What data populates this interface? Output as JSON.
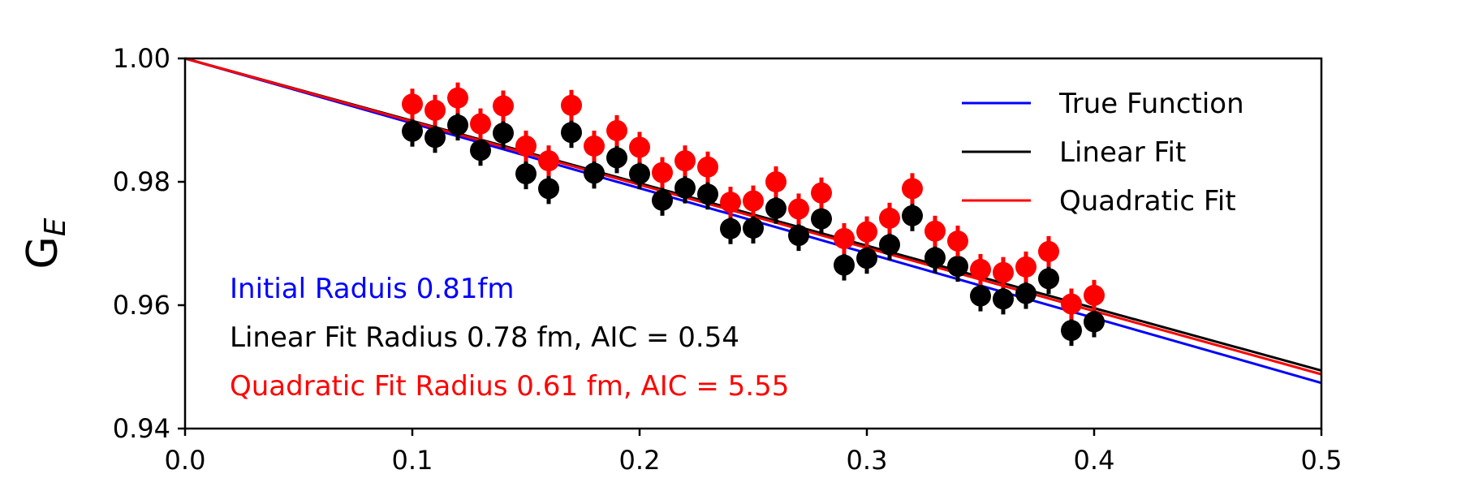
{
  "chart_data": {
    "type": "scatter",
    "title": "",
    "xlabel": "",
    "ylabel": "G",
    "ylabel_sub": "E",
    "xlim": [
      0.0,
      0.5
    ],
    "ylim": [
      0.94,
      1.0
    ],
    "xticks": [
      "0.0",
      "0.1",
      "0.2",
      "0.3",
      "0.4",
      "0.5"
    ],
    "yticks": [
      "0.94",
      "0.96",
      "0.98",
      "1.00"
    ],
    "grid": false,
    "legend_position": "top-right",
    "lines": [
      {
        "name": "True Function",
        "color": "#0000ff",
        "x": [
          0.0,
          0.5
        ],
        "y": [
          1.0,
          0.9474
        ]
      },
      {
        "name": "Linear Fit",
        "color": "#000000",
        "x": [
          0.0,
          0.5
        ],
        "y": [
          1.0,
          0.9494
        ]
      },
      {
        "name": "Quadratic Fit",
        "color": "#ff0000",
        "x": [
          0.0,
          0.5
        ],
        "y": [
          1.0,
          0.9488
        ]
      }
    ],
    "series": [
      {
        "color": "#000000",
        "x": [
          0.1,
          0.11,
          0.12,
          0.13,
          0.14,
          0.15,
          0.16,
          0.17,
          0.18,
          0.19,
          0.2,
          0.21,
          0.22,
          0.23,
          0.24,
          0.25,
          0.26,
          0.27,
          0.28,
          0.29,
          0.3,
          0.31,
          0.32,
          0.33,
          0.34,
          0.35,
          0.36,
          0.37,
          0.38,
          0.39,
          0.4
        ],
        "y": [
          0.9882,
          0.9872,
          0.9892,
          0.9851,
          0.9879,
          0.9813,
          0.9789,
          0.988,
          0.9814,
          0.9839,
          0.9813,
          0.977,
          0.979,
          0.978,
          0.9724,
          0.9725,
          0.9757,
          0.9713,
          0.974,
          0.9665,
          0.9676,
          0.9698,
          0.9745,
          0.9677,
          0.9663,
          0.9615,
          0.961,
          0.9619,
          0.9643,
          0.9559,
          0.9573
        ],
        "yerr": 0.0025
      },
      {
        "color": "#ff0000",
        "x": [
          0.1,
          0.11,
          0.12,
          0.13,
          0.14,
          0.15,
          0.16,
          0.17,
          0.18,
          0.19,
          0.2,
          0.21,
          0.22,
          0.23,
          0.24,
          0.25,
          0.26,
          0.27,
          0.28,
          0.29,
          0.3,
          0.31,
          0.32,
          0.33,
          0.34,
          0.35,
          0.36,
          0.37,
          0.38,
          0.39,
          0.4
        ],
        "y": [
          0.9926,
          0.9916,
          0.9936,
          0.9894,
          0.9923,
          0.9858,
          0.9834,
          0.9924,
          0.9858,
          0.9883,
          0.9856,
          0.9815,
          0.9834,
          0.9824,
          0.9767,
          0.9769,
          0.98,
          0.9756,
          0.9782,
          0.9708,
          0.9719,
          0.9741,
          0.9789,
          0.972,
          0.9704,
          0.9658,
          0.9653,
          0.9662,
          0.9687,
          0.9602,
          0.9616
        ],
        "yerr": 0.0025
      }
    ],
    "annotations": [
      {
        "text": "Initial Raduis 0.81fm",
        "color": "#0000ff"
      },
      {
        "text": "Linear Fit Radius 0.78 fm, AIC = 0.54",
        "color": "#000000"
      },
      {
        "text": "Quadratic Fit Radius 0.61 fm, AIC = 5.55",
        "color": "#ff0000"
      }
    ]
  }
}
